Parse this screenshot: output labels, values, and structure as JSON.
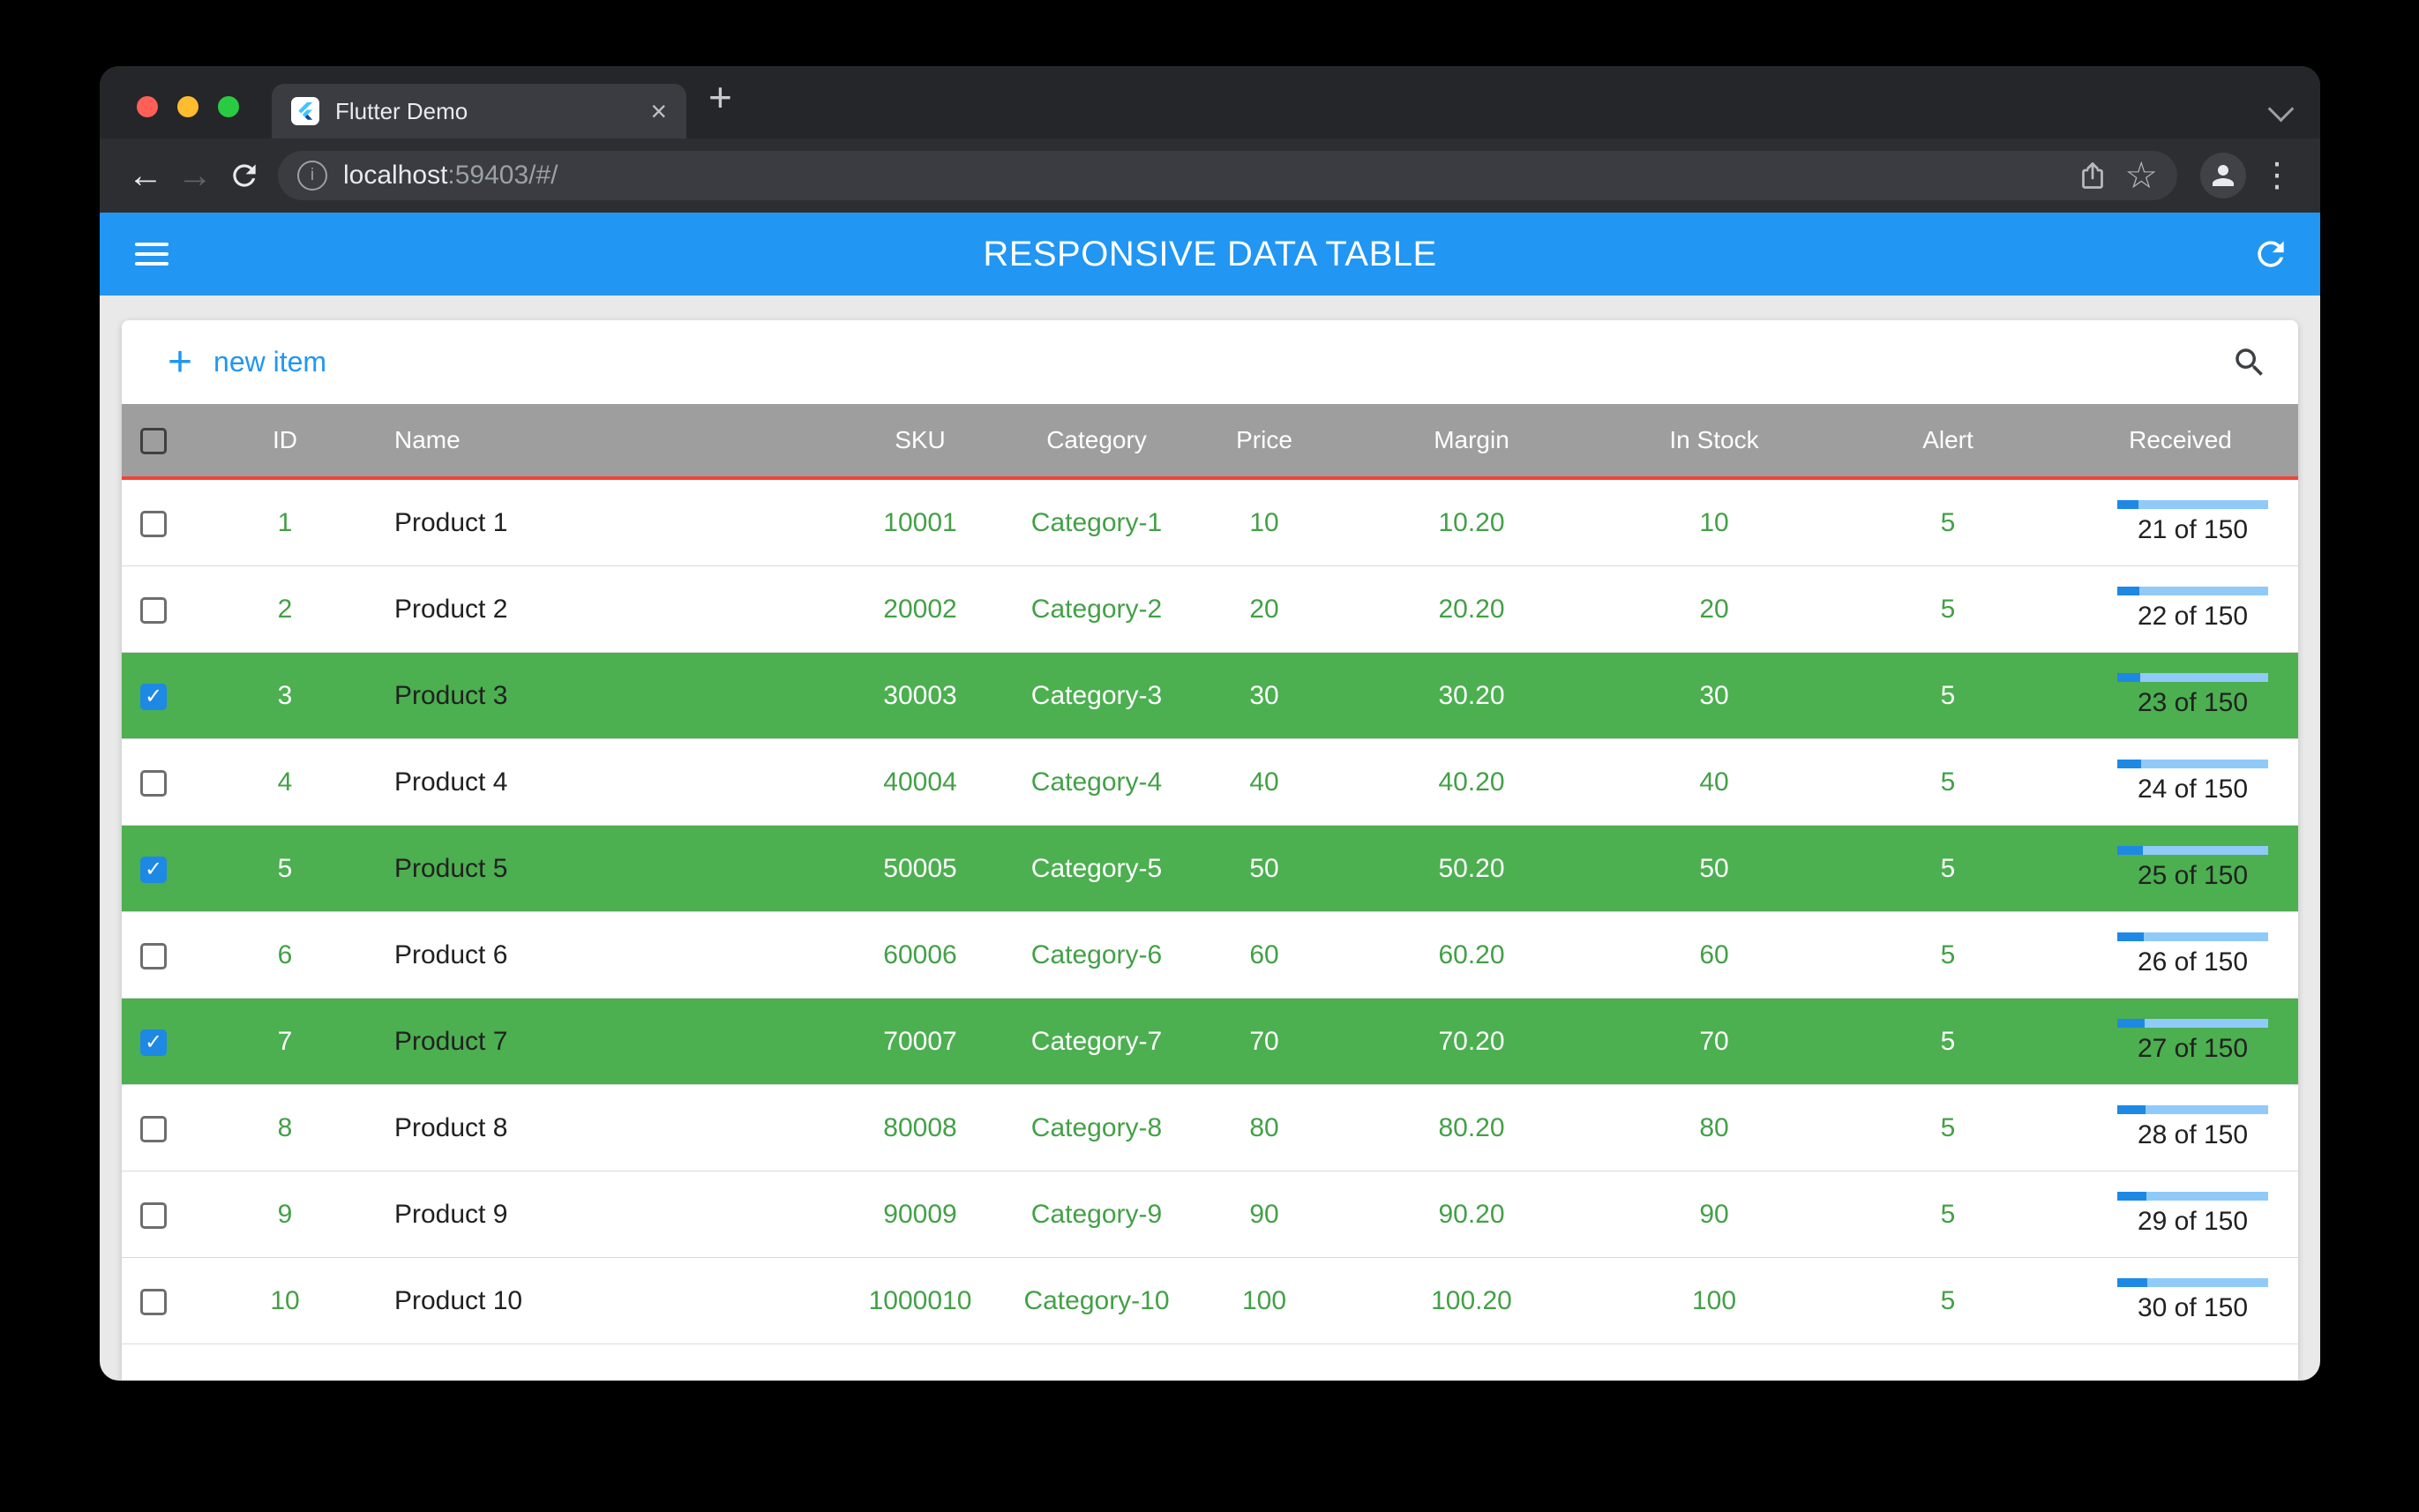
{
  "browser": {
    "tab_title": "Flutter Demo",
    "url_host": "localhost",
    "url_rest": ":59403/#/"
  },
  "appbar": {
    "title": "RESPONSIVE DATA TABLE"
  },
  "card_toolbar": {
    "new_item_label": "new item"
  },
  "icons": {
    "close_tab": "×",
    "new_tab_plus": "+",
    "back_arrow": "←",
    "forward_arrow": "→",
    "overflow_dots": "⋮",
    "bookmark_star": "☆",
    "info": "i",
    "plus": "+",
    "checkmark": "✓"
  },
  "colors": {
    "appbar_blue": "#2196F3",
    "accent_blue": "#2196F3",
    "selected_row_green": "#4CAF50",
    "cell_text_green": "#43A047",
    "header_gray": "#9E9E9E",
    "header_underline_red": "#F44336",
    "progress_fill": "#1E88E5",
    "progress_track": "#90CAF9"
  },
  "table": {
    "headers": [
      "ID",
      "Name",
      "SKU",
      "Category",
      "Price",
      "Margin",
      "In Stock",
      "Alert",
      "Received"
    ],
    "received_total": 150,
    "rows": [
      {
        "id": "1",
        "name": "Product 1",
        "sku": "10001",
        "category": "Category-1",
        "price": "10",
        "margin": "10.20",
        "in_stock": "10",
        "alert": "5",
        "received": 21,
        "received_label": "21 of 150",
        "selected": false
      },
      {
        "id": "2",
        "name": "Product 2",
        "sku": "20002",
        "category": "Category-2",
        "price": "20",
        "margin": "20.20",
        "in_stock": "20",
        "alert": "5",
        "received": 22,
        "received_label": "22 of 150",
        "selected": false
      },
      {
        "id": "3",
        "name": "Product 3",
        "sku": "30003",
        "category": "Category-3",
        "price": "30",
        "margin": "30.20",
        "in_stock": "30",
        "alert": "5",
        "received": 23,
        "received_label": "23 of 150",
        "selected": true
      },
      {
        "id": "4",
        "name": "Product 4",
        "sku": "40004",
        "category": "Category-4",
        "price": "40",
        "margin": "40.20",
        "in_stock": "40",
        "alert": "5",
        "received": 24,
        "received_label": "24 of 150",
        "selected": false
      },
      {
        "id": "5",
        "name": "Product 5",
        "sku": "50005",
        "category": "Category-5",
        "price": "50",
        "margin": "50.20",
        "in_stock": "50",
        "alert": "5",
        "received": 25,
        "received_label": "25 of 150",
        "selected": true
      },
      {
        "id": "6",
        "name": "Product 6",
        "sku": "60006",
        "category": "Category-6",
        "price": "60",
        "margin": "60.20",
        "in_stock": "60",
        "alert": "5",
        "received": 26,
        "received_label": "26 of 150",
        "selected": false
      },
      {
        "id": "7",
        "name": "Product 7",
        "sku": "70007",
        "category": "Category-7",
        "price": "70",
        "margin": "70.20",
        "in_stock": "70",
        "alert": "5",
        "received": 27,
        "received_label": "27 of 150",
        "selected": true
      },
      {
        "id": "8",
        "name": "Product 8",
        "sku": "80008",
        "category": "Category-8",
        "price": "80",
        "margin": "80.20",
        "in_stock": "80",
        "alert": "5",
        "received": 28,
        "received_label": "28 of 150",
        "selected": false
      },
      {
        "id": "9",
        "name": "Product 9",
        "sku": "90009",
        "category": "Category-9",
        "price": "90",
        "margin": "90.20",
        "in_stock": "90",
        "alert": "5",
        "received": 29,
        "received_label": "29 of 150",
        "selected": false
      },
      {
        "id": "10",
        "name": "Product 10",
        "sku": "1000010",
        "category": "Category-10",
        "price": "100",
        "margin": "100.20",
        "in_stock": "100",
        "alert": "5",
        "received": 30,
        "received_label": "30 of 150",
        "selected": false
      }
    ]
  }
}
